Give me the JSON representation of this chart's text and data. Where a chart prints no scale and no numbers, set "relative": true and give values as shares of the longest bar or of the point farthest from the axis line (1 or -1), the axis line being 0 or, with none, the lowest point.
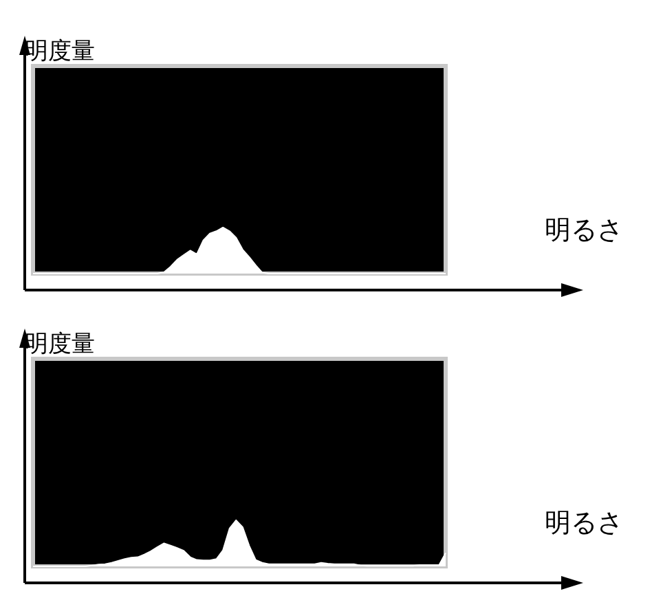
{
  "chart_data": [
    {
      "type": "area",
      "relative": true,
      "xlabel": "明るさ",
      "ylabel": "明度量",
      "color": "#ffffff",
      "grid": false,
      "categories": [
        null,
        null,
        null,
        null,
        null,
        null,
        null,
        null,
        null,
        null,
        null,
        null,
        null,
        null,
        null,
        null,
        null,
        null,
        null,
        null,
        null,
        null,
        null,
        null,
        null,
        null,
        null,
        null,
        null,
        null,
        null,
        null,
        null,
        null,
        null,
        null,
        null,
        null,
        null,
        null,
        null,
        null,
        null,
        null,
        null,
        null,
        null,
        null,
        null,
        null,
        null,
        null,
        null,
        null,
        null,
        null,
        null,
        null,
        null,
        null,
        null,
        null,
        null,
        null
      ],
      "values": [
        0,
        0,
        0,
        0,
        0,
        0,
        0,
        0,
        0,
        0,
        0,
        0,
        0,
        0,
        0,
        0,
        0,
        0,
        0,
        0,
        0.03,
        0.15,
        0.3,
        0.4,
        0.5,
        0.42,
        0.72,
        0.87,
        0.92,
        1,
        0.92,
        0.78,
        0.52,
        0.36,
        0.18,
        0.02,
        0,
        0,
        0,
        0,
        0,
        0,
        0,
        0,
        0,
        0,
        0,
        0,
        0,
        0,
        0,
        0,
        0,
        0,
        0,
        0,
        0,
        0,
        0,
        0,
        0,
        0,
        0,
        0
      ]
    },
    {
      "type": "area",
      "relative": true,
      "xlabel": "明るさ",
      "ylabel": "明度量",
      "color": "#ffffff",
      "grid": false,
      "categories": [
        null,
        null,
        null,
        null,
        null,
        null,
        null,
        null,
        null,
        null,
        null,
        null,
        null,
        null,
        null,
        null,
        null,
        null,
        null,
        null,
        null,
        null,
        null,
        null,
        null,
        null,
        null,
        null,
        null,
        null,
        null,
        null,
        null,
        null,
        null,
        null,
        null,
        null,
        null,
        null,
        null,
        null,
        null,
        null,
        null,
        null,
        null,
        null,
        null,
        null,
        null,
        null,
        null,
        null,
        null,
        null,
        null,
        null,
        null,
        null,
        null,
        null,
        null,
        null
      ],
      "values": [
        0,
        0,
        0,
        0,
        0,
        0,
        0,
        0,
        0,
        0.02,
        0.04,
        0.05,
        0.08,
        0.12,
        0.16,
        0.19,
        0.2,
        0.26,
        0.33,
        0.42,
        0.5,
        0.45,
        0.4,
        0.34,
        0.2,
        0.14,
        0.13,
        0.13,
        0.16,
        0.35,
        0.82,
        1,
        0.85,
        0.45,
        0.14,
        0.08,
        0.05,
        0.05,
        0.05,
        0.05,
        0.05,
        0.05,
        0.05,
        0.05,
        0.08,
        0.06,
        0.05,
        0.05,
        0.05,
        0.05,
        0.02,
        0.01,
        0.01,
        0.01,
        0.01,
        0.01,
        0.01,
        0.01,
        0.01,
        0.03,
        0.03,
        0.03,
        0.03,
        0.29
      ]
    }
  ]
}
